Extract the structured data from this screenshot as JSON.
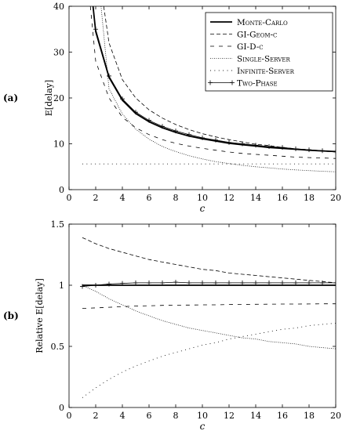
{
  "chart_data": [
    {
      "type": "line",
      "panel_label": "(a)",
      "xlabel": "c",
      "ylabel": "E[delay]",
      "xlim": [
        0,
        20
      ],
      "ylim": [
        0,
        40
      ],
      "xticks": [
        0,
        2,
        4,
        6,
        8,
        10,
        12,
        14,
        16,
        18,
        20
      ],
      "yticks": [
        0,
        10,
        20,
        30,
        40
      ],
      "grid": false,
      "legend_position": "top-right",
      "series": [
        {
          "name": "Monte-Carlo",
          "style": "solid-thick",
          "x": [
            1.8,
            2,
            3,
            4,
            5,
            6,
            7,
            8,
            9,
            10,
            11,
            12,
            13,
            14,
            15,
            16,
            17,
            18,
            19,
            20
          ],
          "y": [
            40,
            34.5,
            24.5,
            19.5,
            16.6,
            14.8,
            13.5,
            12.5,
            11.7,
            11.1,
            10.6,
            10.1,
            9.8,
            9.5,
            9.2,
            9.0,
            8.8,
            8.6,
            8.45,
            8.3
          ]
        },
        {
          "name": "GI-Geom-c",
          "style": "dashed",
          "x": [
            2.6,
            3,
            4,
            5,
            6,
            7,
            8,
            9,
            10,
            11,
            12,
            13,
            14,
            15,
            16,
            17,
            18,
            19,
            20
          ],
          "y": [
            40,
            32,
            24,
            20,
            17.4,
            15.6,
            14.2,
            13.1,
            12.2,
            11.5,
            10.9,
            10.4,
            9.9,
            9.6,
            9.2,
            8.9,
            8.7,
            8.4,
            8.2
          ]
        },
        {
          "name": "GI-D-c",
          "style": "loosely-dashed",
          "x": [
            1.6,
            2,
            3,
            4,
            5,
            6,
            7,
            8,
            9,
            10,
            11,
            12,
            13,
            14,
            15,
            16,
            17,
            18,
            19,
            20
          ],
          "y": [
            40,
            28,
            20,
            15.8,
            13.5,
            12,
            10.9,
            10.1,
            9.5,
            9.0,
            8.6,
            8.2,
            7.9,
            7.7,
            7.5,
            7.3,
            7.1,
            7.0,
            6.9,
            6.8
          ]
        },
        {
          "name": "Single-Server",
          "style": "densely-dotted",
          "x": [
            2.4,
            3,
            4,
            5,
            6,
            7,
            8,
            9,
            10,
            11,
            12,
            13,
            14,
            15,
            16,
            17,
            18,
            19,
            20
          ],
          "y": [
            40,
            22,
            16.5,
            13.2,
            11,
            9.4,
            8.3,
            7.4,
            6.7,
            6.1,
            5.7,
            5.3,
            5.0,
            4.75,
            4.5,
            4.3,
            4.15,
            4.0,
            3.9
          ]
        },
        {
          "name": "Infinite-Server",
          "style": "loosely-dotted",
          "x": [
            1,
            20
          ],
          "y": [
            5.6,
            5.6
          ]
        },
        {
          "name": "Two-Phase",
          "style": "solid-with-plus-markers",
          "x": [
            2,
            3,
            4,
            5,
            6,
            7,
            8,
            9,
            10,
            11,
            12,
            13,
            14,
            15,
            16,
            17,
            18,
            19,
            20
          ],
          "y": [
            35,
            24.8,
            19.8,
            16.9,
            15.1,
            13.8,
            12.8,
            12.0,
            11.3,
            10.8,
            10.3,
            10.0,
            9.7,
            9.4,
            9.2,
            8.9,
            8.7,
            8.5,
            8.3
          ]
        }
      ]
    },
    {
      "type": "line",
      "panel_label": "(b)",
      "xlabel": "c",
      "ylabel": "Relative E[delay]",
      "xlim": [
        0,
        20
      ],
      "ylim": [
        0,
        1.5
      ],
      "xticks": [
        0,
        2,
        4,
        6,
        8,
        10,
        12,
        14,
        16,
        18,
        20
      ],
      "yticks": [
        0,
        0.5,
        1,
        1.5
      ],
      "ytick_labels": [
        "0",
        "0.5",
        "1",
        "1.5"
      ],
      "grid": false,
      "series": [
        {
          "name": "Monte-Carlo",
          "style": "solid-thick",
          "x": [
            1,
            20
          ],
          "y": [
            1.0,
            1.0
          ]
        },
        {
          "name": "GI-Geom-c",
          "style": "dashed",
          "x": [
            1,
            2,
            3,
            4,
            5,
            6,
            7,
            8,
            9,
            10,
            11,
            12,
            13,
            14,
            15,
            16,
            17,
            18,
            19,
            20
          ],
          "y": [
            1.39,
            1.34,
            1.3,
            1.27,
            1.24,
            1.21,
            1.19,
            1.17,
            1.15,
            1.13,
            1.12,
            1.1,
            1.09,
            1.08,
            1.07,
            1.06,
            1.05,
            1.04,
            1.03,
            1.02
          ]
        },
        {
          "name": "GI-D-c",
          "style": "loosely-dashed",
          "x": [
            1,
            2,
            3,
            4,
            5,
            6,
            7,
            8,
            9,
            10,
            11,
            12,
            13,
            14,
            15,
            16,
            17,
            18,
            19,
            20
          ],
          "y": [
            0.81,
            0.815,
            0.82,
            0.825,
            0.83,
            0.832,
            0.835,
            0.837,
            0.838,
            0.84,
            0.84,
            0.842,
            0.843,
            0.844,
            0.845,
            0.846,
            0.846,
            0.847,
            0.848,
            0.848
          ]
        },
        {
          "name": "Single-Server",
          "style": "densely-dotted",
          "x": [
            1,
            2,
            3,
            4,
            5,
            6,
            7,
            8,
            9,
            10,
            11,
            12,
            13,
            14,
            15,
            16,
            17,
            18,
            19,
            20
          ],
          "y": [
            1.0,
            0.95,
            0.89,
            0.84,
            0.79,
            0.75,
            0.71,
            0.68,
            0.65,
            0.63,
            0.61,
            0.59,
            0.57,
            0.56,
            0.54,
            0.53,
            0.52,
            0.5,
            0.49,
            0.48
          ]
        },
        {
          "name": "Infinite-Server",
          "style": "loosely-dotted",
          "x": [
            1,
            2,
            3,
            4,
            5,
            6,
            7,
            8,
            9,
            10,
            11,
            12,
            13,
            14,
            15,
            16,
            17,
            18,
            19,
            20
          ],
          "y": [
            0.08,
            0.16,
            0.23,
            0.29,
            0.34,
            0.38,
            0.42,
            0.45,
            0.48,
            0.51,
            0.53,
            0.56,
            0.58,
            0.6,
            0.62,
            0.64,
            0.65,
            0.67,
            0.68,
            0.69
          ]
        },
        {
          "name": "Two-Phase",
          "style": "solid-with-plus-markers",
          "x": [
            1,
            2,
            3,
            4,
            5,
            6,
            7,
            8,
            9,
            10,
            11,
            12,
            13,
            14,
            15,
            16,
            17,
            18,
            19,
            20
          ],
          "y": [
            0.99,
            1.0,
            1.01,
            1.015,
            1.02,
            1.02,
            1.02,
            1.025,
            1.02,
            1.02,
            1.02,
            1.02,
            1.02,
            1.02,
            1.02,
            1.02,
            1.02,
            1.02,
            1.02,
            1.02
          ]
        }
      ]
    }
  ]
}
